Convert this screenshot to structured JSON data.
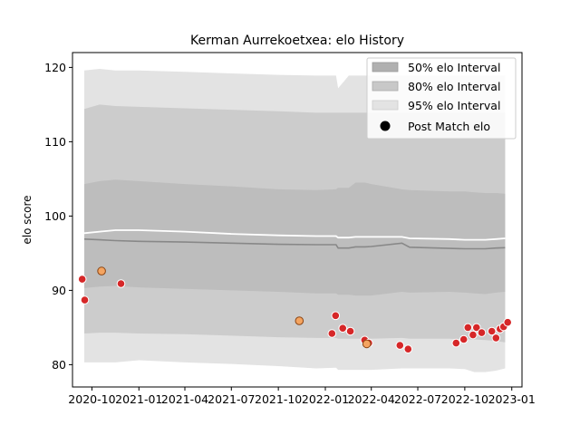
{
  "chart_data": {
    "type": "area",
    "title": "Kerman Aurrekoetxea: elo History",
    "xlabel": "",
    "ylabel": "elo score",
    "xlim": [
      "2020-08-24",
      "2023-01-21"
    ],
    "ylim": [
      77,
      122
    ],
    "yticks": [
      80,
      90,
      100,
      110,
      120
    ],
    "xticks": [
      "2020-10",
      "2021-01",
      "2021-04",
      "2021-07",
      "2021-10",
      "2022-01",
      "2022-04",
      "2022-07",
      "2022-10",
      "2023-01"
    ],
    "x": [
      "2020-09-16",
      "2020-10-16",
      "2020-11-16",
      "2021-01-01",
      "2021-04-01",
      "2021-07-01",
      "2021-10-01",
      "2021-12-14",
      "2022-01-22",
      "2022-01-26",
      "2022-02-16",
      "2022-03-01",
      "2022-03-20",
      "2022-04-01",
      "2022-05-31",
      "2022-06-15",
      "2022-09-01",
      "2022-10-01",
      "2022-10-20",
      "2022-11-10",
      "2022-12-01",
      "2022-12-19"
    ],
    "median": [
      96.9,
      96.8,
      96.7,
      96.6,
      96.5,
      96.35,
      96.2,
      96.15,
      96.15,
      95.7,
      95.7,
      95.85,
      95.85,
      95.9,
      96.35,
      95.8,
      95.65,
      95.6,
      95.6,
      95.6,
      95.7,
      95.75
    ],
    "mean_line": [
      97.7,
      97.9,
      98.1,
      98.1,
      97.9,
      97.6,
      97.4,
      97.3,
      97.3,
      97.1,
      97.1,
      97.2,
      97.2,
      97.2,
      97.2,
      97.0,
      96.9,
      96.8,
      96.8,
      96.8,
      96.9,
      97.0
    ],
    "band_50": {
      "lower": [
        90.3,
        90.5,
        90.6,
        90.4,
        90.2,
        90.0,
        89.8,
        89.6,
        89.6,
        89.4,
        89.4,
        89.3,
        89.3,
        89.3,
        89.8,
        89.7,
        89.8,
        89.7,
        89.6,
        89.5,
        89.7,
        89.8
      ],
      "upper": [
        104.3,
        104.7,
        104.9,
        104.7,
        104.3,
        104.0,
        103.6,
        103.5,
        103.6,
        103.8,
        103.8,
        104.5,
        104.5,
        104.3,
        103.6,
        103.5,
        103.3,
        103.3,
        103.2,
        103.1,
        103.1,
        103.0
      ]
    },
    "band_80": {
      "lower": [
        84.2,
        84.3,
        84.3,
        84.2,
        84.1,
        83.9,
        83.7,
        83.6,
        83.6,
        83.5,
        83.5,
        83.5,
        83.5,
        83.5,
        83.6,
        83.5,
        83.5,
        83.4,
        83.4,
        83.3,
        83.2,
        83.0
      ],
      "upper": [
        114.4,
        115.0,
        114.8,
        114.7,
        114.5,
        114.3,
        114.1,
        113.9,
        113.9,
        113.9,
        113.9,
        113.9,
        113.9,
        113.9,
        113.9,
        113.9,
        113.9,
        113.9,
        113.9,
        113.9,
        113.9,
        113.9
      ]
    },
    "band_95": {
      "lower": [
        80.3,
        80.3,
        80.3,
        80.6,
        80.3,
        80.1,
        79.8,
        79.5,
        79.6,
        79.3,
        79.3,
        79.3,
        79.3,
        79.3,
        79.5,
        79.5,
        79.5,
        79.4,
        79.0,
        79.0,
        79.2,
        79.5
      ],
      "upper": [
        119.6,
        119.8,
        119.6,
        119.6,
        119.4,
        119.2,
        119.0,
        118.9,
        118.9,
        117.2,
        118.9,
        118.9,
        118.9,
        118.9,
        118.9,
        118.9,
        118.9,
        118.9,
        118.9,
        118.9,
        118.9,
        118.9
      ]
    },
    "post_match_red": [
      {
        "x": "2020-09-12",
        "y": 91.5
      },
      {
        "x": "2020-09-17",
        "y": 88.7
      },
      {
        "x": "2020-11-27",
        "y": 90.9
      },
      {
        "x": "2022-01-14",
        "y": 84.2
      },
      {
        "x": "2022-01-21",
        "y": 86.6
      },
      {
        "x": "2022-02-04",
        "y": 84.9
      },
      {
        "x": "2022-02-19",
        "y": 84.5
      },
      {
        "x": "2022-03-19",
        "y": 83.3
      },
      {
        "x": "2022-03-27",
        "y": 82.9
      },
      {
        "x": "2022-05-27",
        "y": 82.6
      },
      {
        "x": "2022-06-12",
        "y": 82.1
      },
      {
        "x": "2022-09-14",
        "y": 82.9
      },
      {
        "x": "2022-09-29",
        "y": 83.4
      },
      {
        "x": "2022-10-07",
        "y": 85.0
      },
      {
        "x": "2022-10-17",
        "y": 84.0
      },
      {
        "x": "2022-10-24",
        "y": 85.0
      },
      {
        "x": "2022-11-03",
        "y": 84.3
      },
      {
        "x": "2022-11-23",
        "y": 84.5
      },
      {
        "x": "2022-12-01",
        "y": 83.6
      },
      {
        "x": "2022-12-09",
        "y": 84.8
      },
      {
        "x": "2022-12-16",
        "y": 85.1
      },
      {
        "x": "2022-12-24",
        "y": 85.7
      }
    ],
    "post_match_orange": [
      {
        "x": "2020-10-20",
        "y": 92.6
      },
      {
        "x": "2021-11-11",
        "y": 85.9
      },
      {
        "x": "2022-03-23",
        "y": 82.8
      }
    ],
    "legend": {
      "position": "top-right",
      "entries": [
        "50% elo Interval",
        "80% elo Interval",
        "95% elo Interval",
        "Post Match elo"
      ]
    },
    "colors": {
      "band_95": "#e3e3e3",
      "band_80": "#cccccc",
      "band_50": "#bdbdbd",
      "median": "#888888",
      "mean_line": "#ffffff",
      "red_marker": "#d62728",
      "orange_marker": "#f4a460",
      "legend_50": "#b0b0b0",
      "legend_80": "#c8c8c8",
      "legend_95": "#e3e3e3"
    },
    "grid": false
  }
}
